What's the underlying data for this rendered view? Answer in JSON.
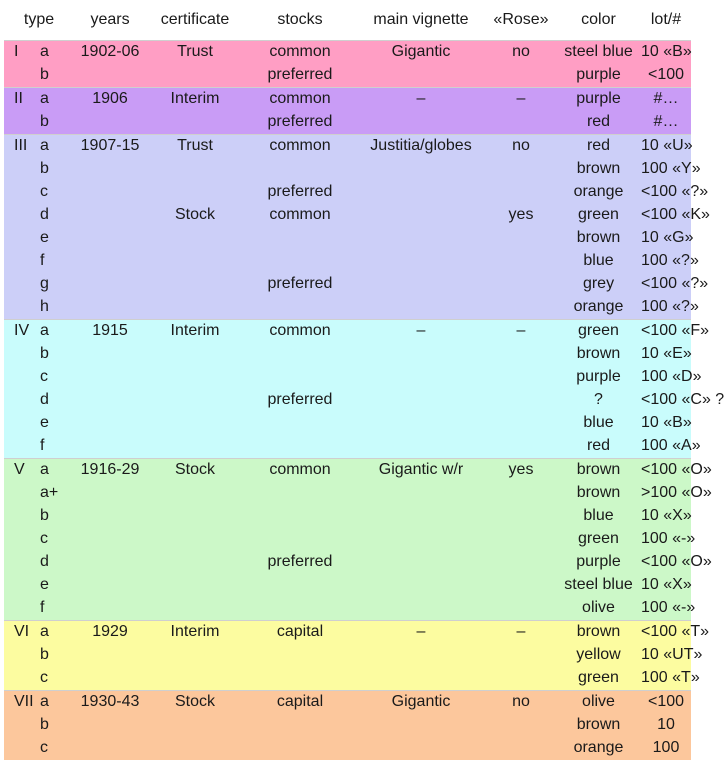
{
  "headers": {
    "type": "type",
    "years": "years",
    "certificate": "certificate",
    "stocks": "stocks",
    "vignette": "main vignette",
    "rose": "«Rose»",
    "color": "color",
    "lot": "lot/#"
  },
  "rows": [
    {
      "type": "I",
      "sub": "a",
      "years": "1902-06",
      "certificate": "Trust",
      "stocks": "common",
      "vignette": "Gigantic",
      "rose": "no",
      "color": "steel blue",
      "lot": "10 «B»"
    },
    {
      "type": "",
      "sub": "b",
      "years": "",
      "certificate": "",
      "stocks": "preferred",
      "vignette": "",
      "rose": "",
      "color": "purple",
      "lot": "<100"
    },
    {
      "type": "II",
      "sub": "a",
      "years": "1906",
      "certificate": "Interim",
      "stocks": "common",
      "vignette": "–",
      "rose": "–",
      "color": "purple",
      "lot": "#…"
    },
    {
      "type": "",
      "sub": "b",
      "years": "",
      "certificate": "",
      "stocks": "preferred",
      "vignette": "",
      "rose": "",
      "color": "red",
      "lot": "#…"
    },
    {
      "type": "III",
      "sub": "a",
      "years": "1907-15",
      "certificate": "Trust",
      "stocks": "common",
      "vignette": "Justitia/globes",
      "rose": "no",
      "color": "red",
      "lot": "10 «U»"
    },
    {
      "type": "",
      "sub": "b",
      "years": "",
      "certificate": "",
      "stocks": "",
      "vignette": "",
      "rose": "",
      "color": "brown",
      "lot": "100 «Y»"
    },
    {
      "type": "",
      "sub": "c",
      "years": "",
      "certificate": "",
      "stocks": "preferred",
      "vignette": "",
      "rose": "",
      "color": "orange",
      "lot": "<100 «?»"
    },
    {
      "type": "",
      "sub": "d",
      "years": "",
      "certificate": "Stock",
      "stocks": "common",
      "vignette": "",
      "rose": "yes",
      "color": "green",
      "lot": "<100 «K»"
    },
    {
      "type": "",
      "sub": "e",
      "years": "",
      "certificate": "",
      "stocks": "",
      "vignette": "",
      "rose": "",
      "color": "brown",
      "lot": "10 «G»"
    },
    {
      "type": "",
      "sub": "f",
      "years": "",
      "certificate": "",
      "stocks": "",
      "vignette": "",
      "rose": "",
      "color": "blue",
      "lot": "100 «?»"
    },
    {
      "type": "",
      "sub": "g",
      "years": "",
      "certificate": "",
      "stocks": "preferred",
      "vignette": "",
      "rose": "",
      "color": "grey",
      "lot": "<100 «?»"
    },
    {
      "type": "",
      "sub": "h",
      "years": "",
      "certificate": "",
      "stocks": "",
      "vignette": "",
      "rose": "",
      "color": "orange",
      "lot": "100 «?»"
    },
    {
      "type": "IV",
      "sub": "a",
      "years": "1915",
      "certificate": "Interim",
      "stocks": "common",
      "vignette": "–",
      "rose": "–",
      "color": "green",
      "lot": "<100 «F»"
    },
    {
      "type": "",
      "sub": "b",
      "years": "",
      "certificate": "",
      "stocks": "",
      "vignette": "",
      "rose": "",
      "color": "brown",
      "lot": "10 «E»"
    },
    {
      "type": "",
      "sub": "c",
      "years": "",
      "certificate": "",
      "stocks": "",
      "vignette": "",
      "rose": "",
      "color": "purple",
      "lot": "100 «D»"
    },
    {
      "type": "",
      "sub": "d",
      "years": "",
      "certificate": "",
      "stocks": "preferred",
      "vignette": "",
      "rose": "",
      "color": "?",
      "lot": "<100 «C» ?"
    },
    {
      "type": "",
      "sub": "e",
      "years": "",
      "certificate": "",
      "stocks": "",
      "vignette": "",
      "rose": "",
      "color": "blue",
      "lot": "10 «B»"
    },
    {
      "type": "",
      "sub": "f",
      "years": "",
      "certificate": "",
      "stocks": "",
      "vignette": "",
      "rose": "",
      "color": "red",
      "lot": "100 «A»"
    },
    {
      "type": "V",
      "sub": "a",
      "years": "1916-29",
      "certificate": "Stock",
      "stocks": "common",
      "vignette": "Gigantic w/r",
      "rose": "yes",
      "color": "brown",
      "lot": "<100 «O»"
    },
    {
      "type": "",
      "sub": "a+",
      "years": "",
      "certificate": "",
      "stocks": "",
      "vignette": "",
      "rose": "",
      "color": "brown",
      "lot": ">100 «O»"
    },
    {
      "type": "",
      "sub": "b",
      "years": "",
      "certificate": "",
      "stocks": "",
      "vignette": "",
      "rose": "",
      "color": "blue",
      "lot": "10 «X»"
    },
    {
      "type": "",
      "sub": "c",
      "years": "",
      "certificate": "",
      "stocks": "",
      "vignette": "",
      "rose": "",
      "color": "green",
      "lot": "100 «-»"
    },
    {
      "type": "",
      "sub": "d",
      "years": "",
      "certificate": "",
      "stocks": "preferred",
      "vignette": "",
      "rose": "",
      "color": "purple",
      "lot": "<100 «O»"
    },
    {
      "type": "",
      "sub": "e",
      "years": "",
      "certificate": "",
      "stocks": "",
      "vignette": "",
      "rose": "",
      "color": "steel blue",
      "lot": "10 «X»"
    },
    {
      "type": "",
      "sub": "f",
      "years": "",
      "certificate": "",
      "stocks": "",
      "vignette": "",
      "rose": "",
      "color": "olive",
      "lot": "100 «-»"
    },
    {
      "type": "VI",
      "sub": "a",
      "years": "1929",
      "certificate": "Interim",
      "stocks": "capital",
      "vignette": "–",
      "rose": "–",
      "color": "brown",
      "lot": "<100 «T»"
    },
    {
      "type": "",
      "sub": "b",
      "years": "",
      "certificate": "",
      "stocks": "",
      "vignette": "",
      "rose": "",
      "color": "yellow",
      "lot": "10 «UT»"
    },
    {
      "type": "",
      "sub": "c",
      "years": "",
      "certificate": "",
      "stocks": "",
      "vignette": "",
      "rose": "",
      "color": "green",
      "lot": "100 «T»"
    },
    {
      "type": "VII",
      "sub": "a",
      "years": "1930-43",
      "certificate": "Stock",
      "stocks": "capital",
      "vignette": "Gigantic",
      "rose": "no",
      "color": "olive",
      "lot": "<100"
    },
    {
      "type": "",
      "sub": "b",
      "years": "",
      "certificate": "",
      "stocks": "",
      "vignette": "",
      "rose": "",
      "color": "brown",
      "lot": "10"
    },
    {
      "type": "",
      "sub": "c",
      "years": "",
      "certificate": "",
      "stocks": "",
      "vignette": "",
      "rose": "",
      "color": "orange",
      "lot": "100"
    }
  ],
  "group_colors": {
    "I": "#ff9ec4",
    "II": "#c99cf6",
    "III": "#cccff8",
    "IV": "#c9fcfc",
    "V": "#ccf8c8",
    "VI": "#fcfca0",
    "VII": "#fcc79c"
  }
}
